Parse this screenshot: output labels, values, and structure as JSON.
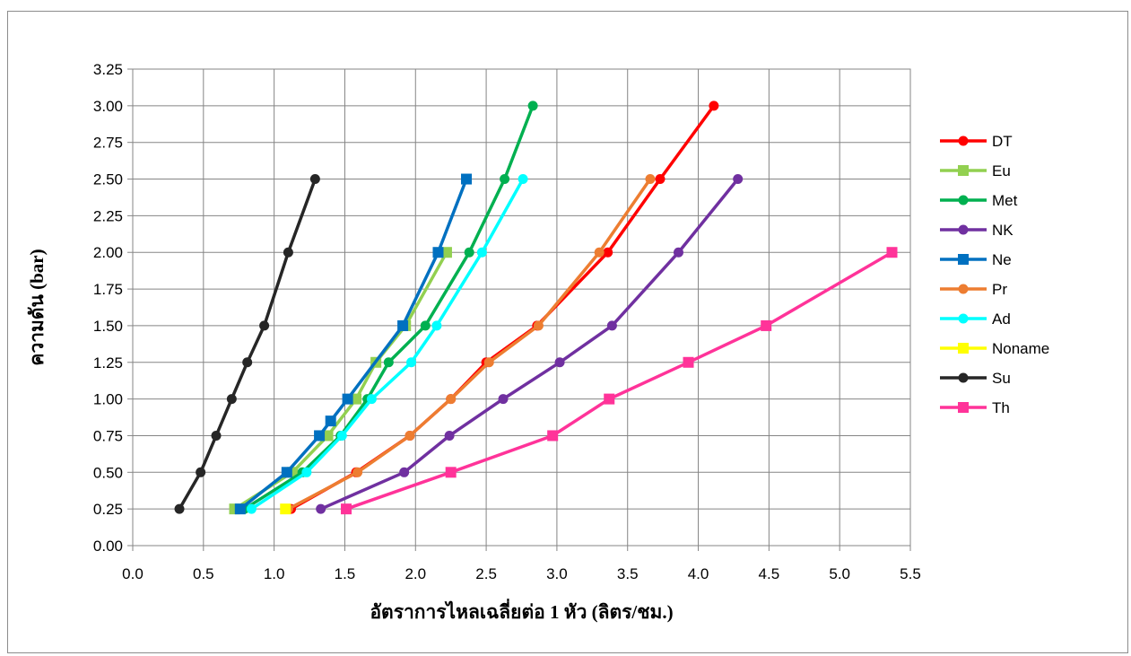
{
  "chart_data": {
    "type": "line",
    "title": "",
    "xlabel": "อัตราการไหลเฉลี่ยต่อ 1 หัว (ลิตร/ชม.)",
    "ylabel": "ความดัน (bar)",
    "xlim": [
      0.0,
      5.5
    ],
    "ylim": [
      0.0,
      3.25
    ],
    "x_ticks": [
      "0.0",
      "0.5",
      "1.0",
      "1.5",
      "2.0",
      "2.5",
      "3.0",
      "3.5",
      "4.0",
      "4.5",
      "5.0",
      "5.5"
    ],
    "y_ticks": [
      "0.00",
      "0.25",
      "0.50",
      "0.75",
      "1.00",
      "1.25",
      "1.50",
      "1.75",
      "2.00",
      "2.25",
      "2.50",
      "2.75",
      "3.00",
      "3.25"
    ],
    "grid": true,
    "legend_position": "right",
    "series": [
      {
        "name": "DT",
        "color": "#ff0000",
        "marker": "circle",
        "x": [
          1.12,
          1.58,
          1.96,
          2.25,
          2.5,
          2.86,
          3.36,
          3.73,
          4.11
        ],
        "y": [
          0.25,
          0.5,
          0.75,
          1.0,
          1.25,
          1.5,
          2.0,
          2.5,
          3.0
        ]
      },
      {
        "name": "Eu",
        "color": "#92d050",
        "marker": "square",
        "x": [
          0.72,
          1.13,
          1.38,
          1.58,
          1.72,
          1.93,
          2.22
        ],
        "y": [
          0.25,
          0.5,
          0.75,
          1.0,
          1.25,
          1.5,
          2.0
        ]
      },
      {
        "name": "Met",
        "color": "#00b050",
        "marker": "circle",
        "x": [
          0.79,
          1.2,
          1.47,
          1.66,
          1.81,
          2.07,
          2.38,
          2.63,
          2.83
        ],
        "y": [
          0.25,
          0.5,
          0.75,
          1.0,
          1.25,
          1.5,
          2.0,
          2.5,
          3.0
        ]
      },
      {
        "name": "NK",
        "color": "#7030a0",
        "marker": "circle",
        "x": [
          1.33,
          1.92,
          2.24,
          2.62,
          3.02,
          3.39,
          3.86,
          4.28
        ],
        "y": [
          0.25,
          0.5,
          0.75,
          1.0,
          1.25,
          1.5,
          2.0,
          2.5
        ]
      },
      {
        "name": "Ne",
        "color": "#0070c0",
        "marker": "square",
        "x": [
          0.76,
          1.09,
          1.32,
          1.4,
          1.52,
          1.91,
          2.16,
          2.36
        ],
        "y": [
          0.25,
          0.5,
          0.75,
          0.85,
          1.0,
          1.5,
          2.0,
          2.5
        ]
      },
      {
        "name": "Pr",
        "color": "#ed7d31",
        "marker": "circle",
        "x": [
          1.1,
          1.59,
          1.96,
          2.25,
          2.52,
          2.87,
          3.3,
          3.66
        ],
        "y": [
          0.25,
          0.5,
          0.75,
          1.0,
          1.25,
          1.5,
          2.0,
          2.5
        ]
      },
      {
        "name": "Ad",
        "color": "#00ffff",
        "marker": "circle",
        "x": [
          0.84,
          1.23,
          1.48,
          1.69,
          1.97,
          2.15,
          2.47,
          2.76
        ],
        "y": [
          0.25,
          0.5,
          0.75,
          1.0,
          1.25,
          1.5,
          2.0,
          2.5
        ]
      },
      {
        "name": "Noname",
        "color": "#ffff00",
        "marker": "square",
        "x": [
          1.08
        ],
        "y": [
          0.25
        ]
      },
      {
        "name": "Su",
        "color": "#262626",
        "marker": "circle",
        "x": [
          0.33,
          0.48,
          0.59,
          0.7,
          0.81,
          0.93,
          1.1,
          1.29
        ],
        "y": [
          0.25,
          0.5,
          0.75,
          1.0,
          1.25,
          1.5,
          2.0,
          2.5
        ]
      },
      {
        "name": "Th",
        "color": "#ff3399",
        "marker": "square",
        "x": [
          1.51,
          2.25,
          2.97,
          3.37,
          3.93,
          4.48,
          5.37
        ],
        "y": [
          0.25,
          0.5,
          0.75,
          1.0,
          1.25,
          1.5,
          2.0
        ]
      }
    ]
  }
}
